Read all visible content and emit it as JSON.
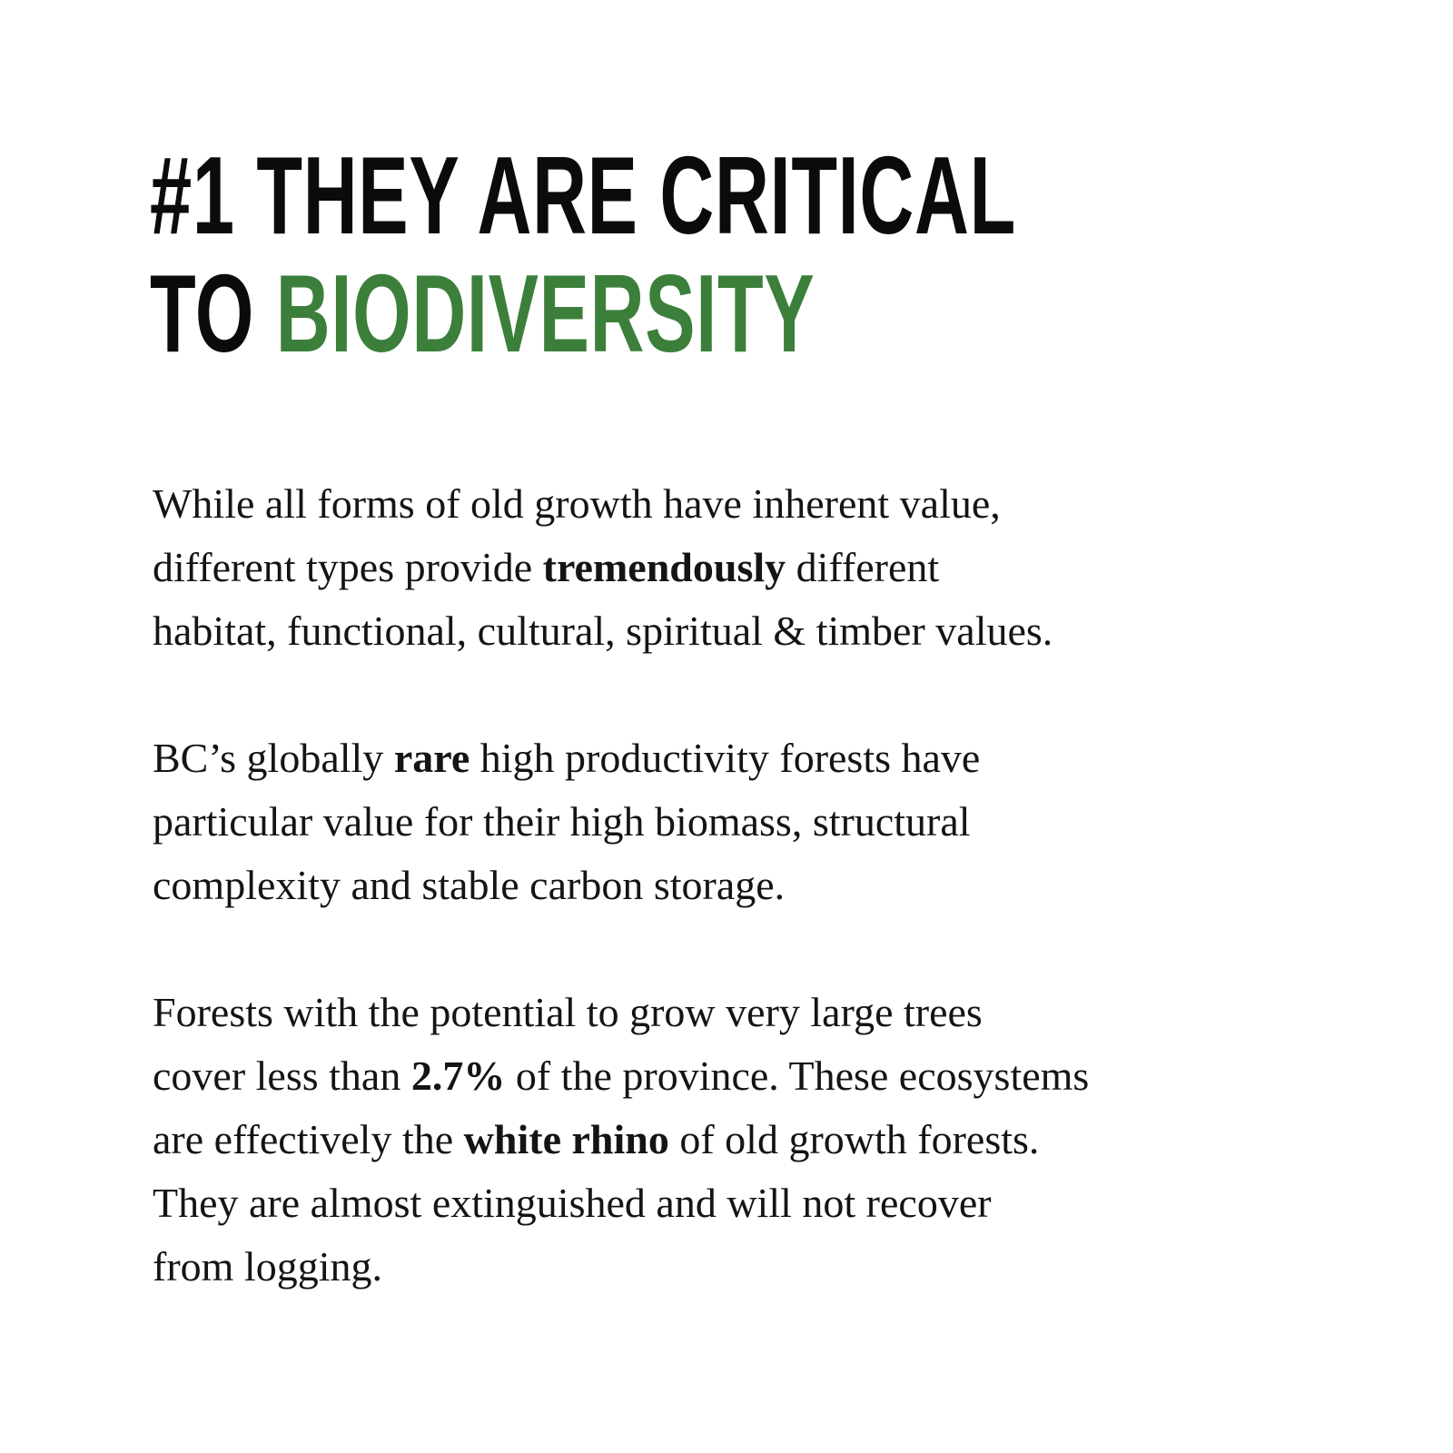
{
  "heading": {
    "line1": "#1 THEY ARE CRITICAL",
    "line2_prefix": "TO ",
    "line2_highlight": "BIODIVERSITY",
    "highlight_color": "#3b7f3b"
  },
  "paragraphs": [
    [
      [
        {
          "t": "While all forms of old growth have inherent value,"
        }
      ],
      [
        {
          "t": "different types provide "
        },
        {
          "t": "tremendously",
          "b": true
        },
        {
          "t": " different"
        }
      ],
      [
        {
          "t": "habitat, functional, cultural, spiritual & timber values."
        }
      ]
    ],
    [
      [
        {
          "t": "BC’s globally "
        },
        {
          "t": "rare",
          "b": true
        },
        {
          "t": " high productivity forests have"
        }
      ],
      [
        {
          "t": "particular value for their high biomass, structural"
        }
      ],
      [
        {
          "t": "complexity and stable carbon storage."
        }
      ]
    ],
    [
      [
        {
          "t": "Forests with the potential to grow very large trees"
        }
      ],
      [
        {
          "t": "cover less than "
        },
        {
          "t": "2.7%",
          "b": true
        },
        {
          "t": " of the province. These ecosystems"
        }
      ],
      [
        {
          "t": "are effectively the "
        },
        {
          "t": "white rhino",
          "b": true
        },
        {
          "t": " of old growth forests."
        }
      ],
      [
        {
          "t": "They are almost extinguished and will not recover"
        }
      ],
      [
        {
          "t": "from logging."
        }
      ]
    ]
  ]
}
